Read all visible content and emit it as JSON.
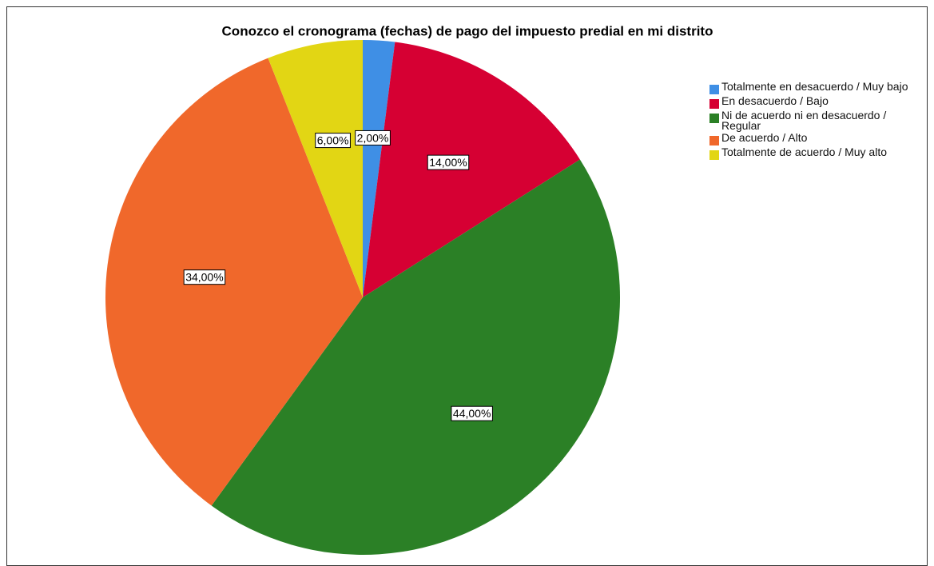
{
  "chart_data": {
    "type": "pie",
    "title": "Conozco el cronograma (fechas) de pago del impuesto predial en mi distrito",
    "categories": [
      "Totalmente en desacuerdo / Muy bajo",
      "En desacuerdo / Bajo",
      "Ni de acuerdo ni en desacuerdo / Regular",
      "De acuerdo / Alto",
      "Totalmente de acuerdo / Muy alto"
    ],
    "values": [
      2,
      14,
      44,
      34,
      6
    ],
    "value_labels": [
      "2,00%",
      "14,00%",
      "44,00%",
      "34,00%",
      "6,00%"
    ],
    "colors": [
      "#3f8fe5",
      "#d60033",
      "#2b8026",
      "#f0682b",
      "#e2d614"
    ],
    "legend": "right"
  }
}
